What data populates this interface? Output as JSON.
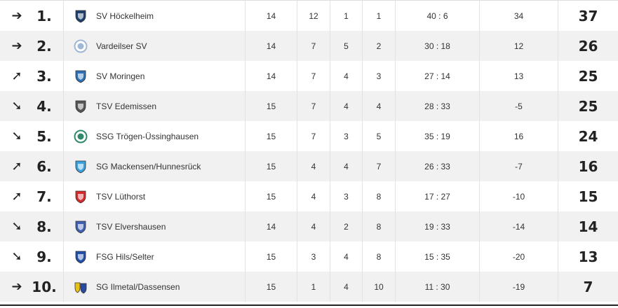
{
  "table": {
    "rows": [
      {
        "trend": "➔",
        "trend_icon": "arrow-right-icon",
        "rank": "1.",
        "team": "SV Höckelheim",
        "logo_icon": "shield-crest-icon",
        "logo_color": "#1e3f6b",
        "played": "14",
        "won": "12",
        "drawn": "1",
        "lost": "1",
        "goals": "40 : 6",
        "diff": "34",
        "points": "37"
      },
      {
        "trend": "➔",
        "trend_icon": "arrow-right-icon",
        "rank": "2.",
        "team": "Vardeilser SV",
        "logo_icon": "round-crest-icon",
        "logo_color": "#9fb8d6",
        "played": "14",
        "won": "7",
        "drawn": "5",
        "lost": "2",
        "goals": "30 : 18",
        "diff": "12",
        "points": "26"
      },
      {
        "trend": "➚",
        "trend_icon": "arrow-up-right-icon",
        "rank": "3.",
        "team": "SV Moringen",
        "logo_icon": "shield-crest-icon",
        "logo_color": "#2b6fb5",
        "played": "14",
        "won": "7",
        "drawn": "4",
        "lost": "3",
        "goals": "27 : 14",
        "diff": "13",
        "points": "25"
      },
      {
        "trend": "➘",
        "trend_icon": "arrow-down-right-icon",
        "rank": "4.",
        "team": "TSV Edemissen",
        "logo_icon": "shield-crest-icon",
        "logo_color": "#555555",
        "played": "15",
        "won": "7",
        "drawn": "4",
        "lost": "4",
        "goals": "28 : 33",
        "diff": "-5",
        "points": "25"
      },
      {
        "trend": "➘",
        "trend_icon": "arrow-down-right-icon",
        "rank": "5.",
        "team": "SSG Trögen-Üssinghausen",
        "logo_icon": "round-crest-icon",
        "logo_color": "#2e8a6a",
        "played": "15",
        "won": "7",
        "drawn": "3",
        "lost": "5",
        "goals": "35 : 19",
        "diff": "16",
        "points": "24"
      },
      {
        "trend": "➚",
        "trend_icon": "arrow-up-right-icon",
        "rank": "6.",
        "team": "SG Mackensen/Hunnesrück",
        "logo_icon": "shield-crest-icon",
        "logo_color": "#3aa0de",
        "played": "15",
        "won": "4",
        "drawn": "4",
        "lost": "7",
        "goals": "26 : 33",
        "diff": "-7",
        "points": "16"
      },
      {
        "trend": "➚",
        "trend_icon": "arrow-up-right-icon",
        "rank": "7.",
        "team": "TSV Lüthorst",
        "logo_icon": "shield-crest-icon",
        "logo_color": "#d42a2a",
        "played": "15",
        "won": "4",
        "drawn": "3",
        "lost": "8",
        "goals": "17 : 27",
        "diff": "-10",
        "points": "15"
      },
      {
        "trend": "➘",
        "trend_icon": "arrow-down-right-icon",
        "rank": "8.",
        "team": "TSV Elvershausen",
        "logo_icon": "shield-crest-icon",
        "logo_color": "#3f5fb0",
        "played": "14",
        "won": "4",
        "drawn": "2",
        "lost": "8",
        "goals": "19 : 33",
        "diff": "-14",
        "points": "14"
      },
      {
        "trend": "➘",
        "trend_icon": "arrow-down-right-icon",
        "rank": "9.",
        "team": "FSG Hils/Selter",
        "logo_icon": "shield-crest-icon",
        "logo_color": "#1f4fa8",
        "played": "15",
        "won": "3",
        "drawn": "4",
        "lost": "8",
        "goals": "15 : 35",
        "diff": "-20",
        "points": "13"
      },
      {
        "trend": "➔",
        "trend_icon": "arrow-right-icon",
        "rank": "10.",
        "team": "SG Ilmetal/Dassensen",
        "logo_icon": "combined-crest-icon",
        "logo_color": "#2a4aa0",
        "played": "15",
        "won": "1",
        "drawn": "4",
        "lost": "10",
        "goals": "11 : 30",
        "diff": "-19",
        "points": "7"
      }
    ]
  }
}
